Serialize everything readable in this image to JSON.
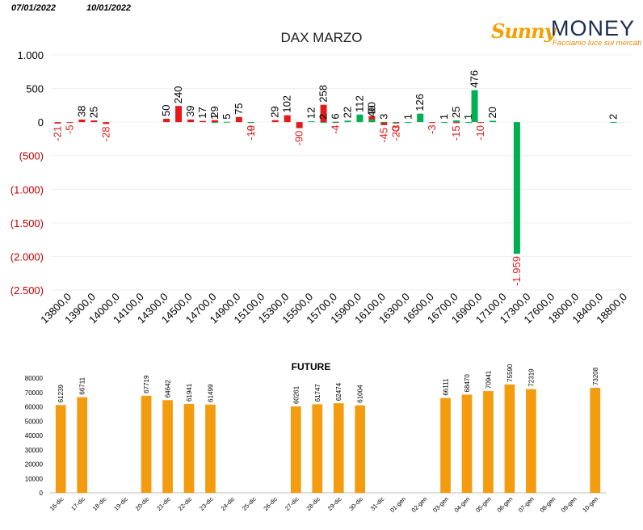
{
  "header": {
    "date_left": "07/01/2022",
    "date_right": "10/01/2022"
  },
  "logo": {
    "brand_left": "Sunny",
    "brand_right": "MONEY",
    "tagline": "Facciamo luce sui mercati"
  },
  "colors": {
    "positive": "#00b050",
    "negative": "#e31a1c",
    "future": "#f39c0f",
    "negative_tick": "#c00000"
  },
  "chart_data": [
    {
      "type": "bar",
      "title": "DAX MARZO",
      "ylim": [
        -2500,
        1000
      ],
      "yticks": [
        1000,
        500,
        0,
        -500,
        -1000,
        -1500,
        -2000,
        -2500
      ],
      "ytick_labels": [
        "1.000",
        "500",
        "0",
        "(500)",
        "(1.000)",
        "(1.500)",
        "(2.000)",
        "(2.500)"
      ],
      "xtick_labels": [
        "13800,0",
        "13900,0",
        "14000,0",
        "14100,0",
        "14300,0",
        "14500,0",
        "14700,0",
        "14900,0",
        "15100,0",
        "15300,0",
        "15500,0",
        "15700,0",
        "15900,0",
        "16100,0",
        "16300,0",
        "16500,0",
        "16700,0",
        "16900,0",
        "17100,0",
        "17300,0",
        "17600,0",
        "18000,0",
        "18400,0",
        "18800,0"
      ],
      "series": [
        {
          "color": "#e31a1c",
          "points": [
            {
              "slot": 0,
              "value": -21
            },
            {
              "slot": 1,
              "value": -5
            },
            {
              "slot": 2,
              "value": 38
            },
            {
              "slot": 3,
              "value": 25
            },
            {
              "slot": 4,
              "value": -28
            },
            {
              "slot": 9,
              "value": 50
            },
            {
              "slot": 10,
              "value": 240
            },
            {
              "slot": 11,
              "value": 39
            },
            {
              "slot": 12,
              "value": 17
            },
            {
              "slot": 13,
              "value": 29
            },
            {
              "slot": 15,
              "value": 75
            },
            {
              "slot": 16,
              "value": -10
            },
            {
              "slot": 18,
              "value": 29
            },
            {
              "slot": 19,
              "value": 102
            },
            {
              "slot": 20,
              "value": -90
            },
            {
              "slot": 22,
              "value": 258
            },
            {
              "slot": 23,
              "value": -4
            },
            {
              "slot": 26,
              "value": 90
            },
            {
              "slot": 27,
              "value": -45
            },
            {
              "slot": 28,
              "value": -20
            },
            {
              "slot": 31,
              "value": -3
            },
            {
              "slot": 33,
              "value": -15
            },
            {
              "slot": 35,
              "value": -10
            }
          ]
        },
        {
          "color": "#00b050",
          "points": [
            {
              "slot": 13,
              "value": 1
            },
            {
              "slot": 14,
              "value": 5
            },
            {
              "slot": 16,
              "value": -9
            },
            {
              "slot": 21,
              "value": 12
            },
            {
              "slot": 22,
              "value": 2
            },
            {
              "slot": 23,
              "value": 6
            },
            {
              "slot": 24,
              "value": 22
            },
            {
              "slot": 25,
              "value": 112
            },
            {
              "slot": 26,
              "value": 40
            },
            {
              "slot": 27,
              "value": 3
            },
            {
              "slot": 28,
              "value": -3
            },
            {
              "slot": 29,
              "value": 1
            },
            {
              "slot": 30,
              "value": 126
            },
            {
              "slot": 32,
              "value": 1
            },
            {
              "slot": 33,
              "value": 25
            },
            {
              "slot": 34,
              "value": 1
            },
            {
              "slot": 34.5,
              "value": 476
            },
            {
              "slot": 36,
              "value": 20
            },
            {
              "slot": 38,
              "value": -1959
            },
            {
              "slot": 46,
              "value": 2
            }
          ]
        }
      ]
    },
    {
      "type": "bar",
      "title": "FUTURE",
      "ylim": [
        0,
        80000
      ],
      "yticks": [
        0,
        10000,
        20000,
        30000,
        40000,
        50000,
        60000,
        70000,
        80000
      ],
      "categories": [
        "16-dic",
        "17-dic",
        "18-dic",
        "19-dic",
        "20-dic",
        "21-dic",
        "22-dic",
        "23-dic",
        "24-dic",
        "25-dic",
        "26-dic",
        "27-dic",
        "28-dic",
        "29-dic",
        "30-dic",
        "31-dic",
        "01-gen",
        "02-gen",
        "03-gen",
        "04-gen",
        "05-gen",
        "06-gen",
        "07-gen",
        "08-gen",
        "09-gen",
        "10-gen"
      ],
      "values": [
        61239,
        66711,
        null,
        null,
        67719,
        64642,
        61941,
        61499,
        null,
        null,
        null,
        60261,
        61747,
        62474,
        61004,
        null,
        null,
        null,
        66111,
        68470,
        70941,
        75590,
        72319,
        null,
        null,
        73208
      ],
      "color": "#f39c0f"
    }
  ]
}
